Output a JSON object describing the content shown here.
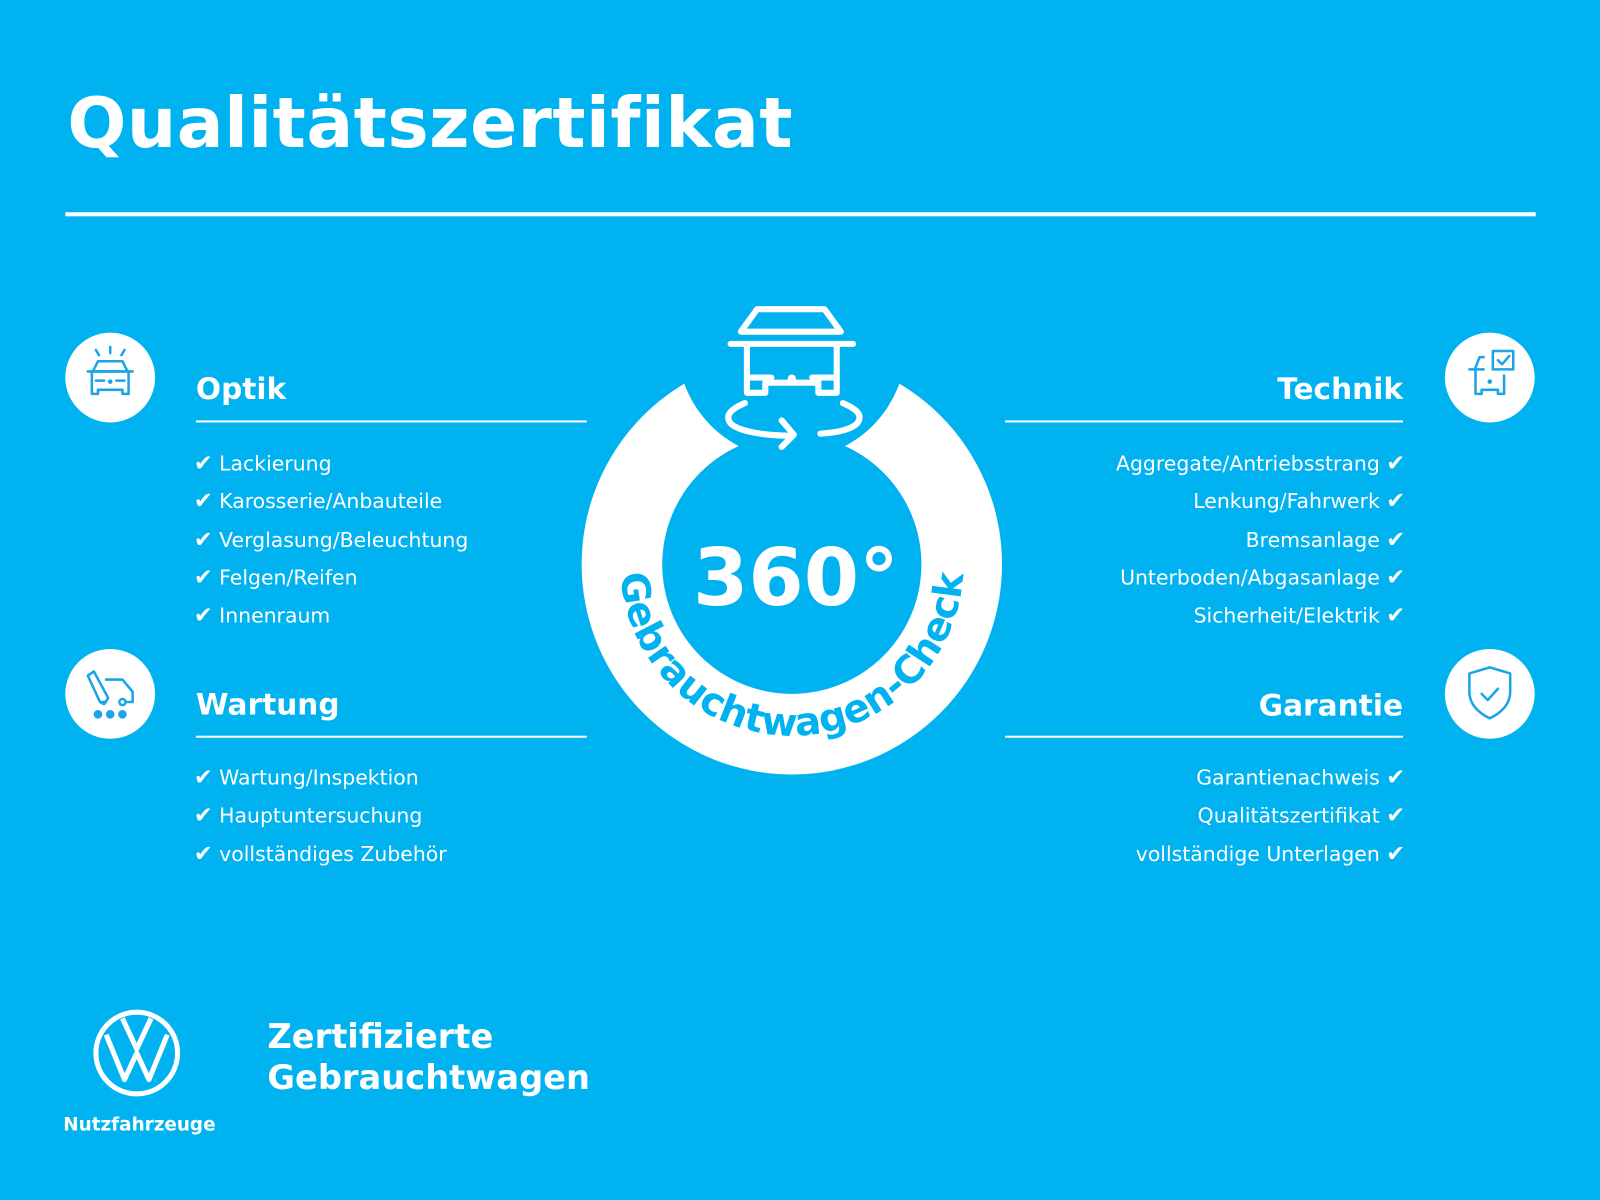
{
  "title": "Qualitätszertifikat",
  "check_glyph": "✔",
  "badge": {
    "number": "360°",
    "arc_text": "Gebrauchtwagen-Check"
  },
  "sections": {
    "optik": {
      "heading": "Optik",
      "icon": "car-front-lights-icon",
      "items": [
        "Lackierung",
        "Karosserie/Anbauteile",
        "Verglasung/Beleuchtung",
        "Felgen/Reifen",
        "Innenraum"
      ]
    },
    "wartung": {
      "heading": "Wartung",
      "icon": "van-wrench-icon",
      "items": [
        "Wartung/Inspektion",
        "Hauptuntersuchung",
        "vollständiges Zubehör"
      ]
    },
    "technik": {
      "heading": "Technik",
      "icon": "car-checklist-icon",
      "items": [
        "Aggregate/Antriebsstrang",
        "Lenkung/Fahrwerk",
        "Bremsanlage",
        "Unterboden/Abgasanlage",
        "Sicherheit/Elektrik"
      ]
    },
    "garantie": {
      "heading": "Garantie",
      "icon": "shield-check-icon",
      "items": [
        "Garantienachweis",
        "Qualitätszertifikat",
        "vollständige Unterlagen"
      ]
    }
  },
  "brand": {
    "logo": "VW",
    "sub": "Nutzfahrzeuge",
    "line1": "Zertifizierte",
    "line2": "Gebrauchtwagen"
  },
  "colors": {
    "background": "#00b2f0",
    "foreground": "#ffffff",
    "icon": "#1aa5e6"
  }
}
